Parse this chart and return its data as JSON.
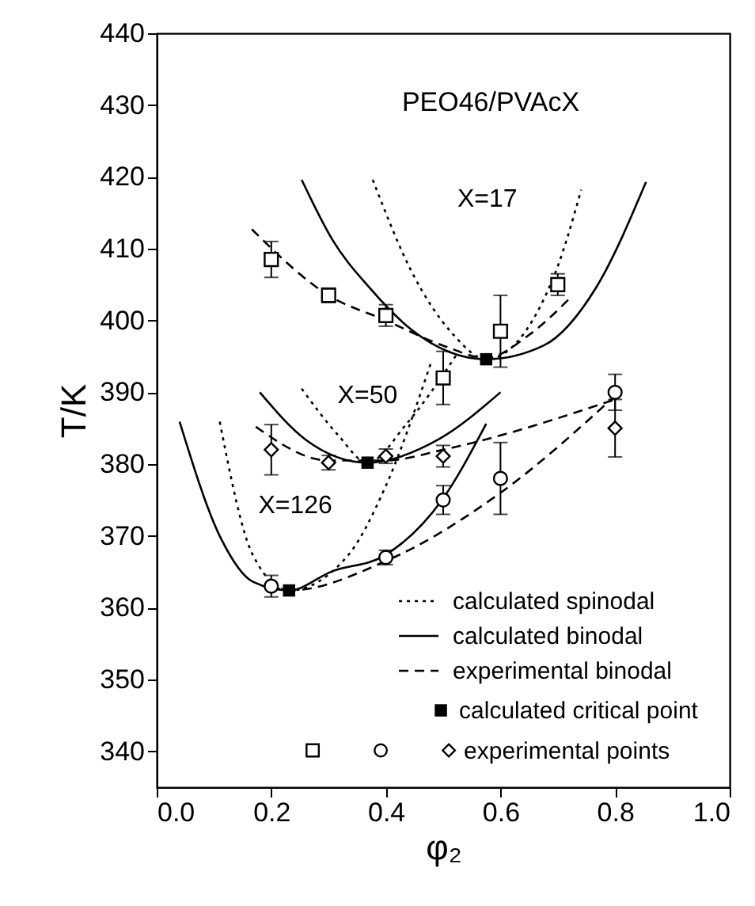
{
  "chart_data": {
    "type": "line",
    "title": "PEO46/PVAcX",
    "xlabel": "φ₂",
    "ylabel": "T/K",
    "xlim": [
      0,
      1
    ],
    "ylim": [
      335,
      440
    ],
    "xticks": [
      {
        "value": 0,
        "label": "0.0"
      },
      0.2,
      0.4,
      0.6,
      0.8,
      {
        "value": 1,
        "label": "1.0"
      }
    ],
    "yticks": [
      340,
      350,
      360,
      370,
      380,
      390,
      400,
      410,
      420,
      430,
      440
    ],
    "grid": false,
    "legend": "bottom right",
    "annotations": [
      "X=17",
      "X=50",
      "X=126"
    ],
    "series": [
      {
        "name": "calculated spinodal",
        "type": "line",
        "line_style": "dotted",
        "color": "#000000",
        "x": [
          0.377,
          0.445,
          0.518,
          0.575,
          0.693,
          0.741
        ],
        "values": [
          419.6,
          406.8,
          398,
          394.6,
          406.1,
          418.2
        ]
      },
      {
        "type": "line",
        "line_style": "dotted",
        "color": "#000000",
        "x": [
          0.253,
          0.316,
          0.368,
          0.436,
          0.528
        ],
        "values": [
          390.5,
          384.1,
          380.2,
          385.6,
          395.8
        ]
      },
      {
        "type": "line",
        "line_style": "dotted",
        "color": "#000000",
        "x": [
          0.11,
          0.168,
          0.231,
          0.334,
          0.399,
          0.479
        ],
        "values": [
          385.9,
          367.3,
          362.4,
          367.3,
          376.8,
          394.2
        ]
      },
      {
        "name": "calculated binodal",
        "type": "line",
        "line_style": "solid",
        "color": "#000000",
        "x": [
          0.253,
          0.307,
          0.371,
          0.445,
          0.575,
          0.675,
          0.767,
          0.854
        ],
        "values": [
          419.6,
          411.2,
          404.6,
          398.7,
          394.6,
          396.5,
          404.6,
          419.3
        ]
      },
      {
        "type": "line",
        "line_style": "solid",
        "color": "#000000",
        "x": [
          0.18,
          0.26,
          0.368,
          0.491,
          0.6
        ],
        "values": [
          390,
          383.4,
          380.2,
          383.4,
          390
        ]
      },
      {
        "type": "line",
        "line_style": "solid",
        "color": "#000000",
        "x": [
          0.04,
          0.113,
          0.168,
          0.231,
          0.307,
          0.396,
          0.498,
          0.575
        ],
        "values": [
          385.9,
          369.5,
          363.6,
          362.4,
          365.1,
          367.2,
          375,
          385.6
        ]
      },
      {
        "name": "experimental binodal",
        "type": "line",
        "line_style": "dashed",
        "color": "#000000",
        "x": [
          0.166,
          0.3,
          0.4,
          0.5,
          0.575,
          0.65,
          0.726
        ],
        "values": [
          412.7,
          403.5,
          400,
          396.5,
          394.8,
          398,
          403.5
        ]
      },
      {
        "type": "line",
        "line_style": "dashed",
        "color": "#000000",
        "x": [
          0.173,
          0.3,
          0.4,
          0.5,
          0.8
        ],
        "values": [
          385.2,
          380.5,
          380.5,
          382,
          389
        ]
      },
      {
        "type": "line",
        "line_style": "dashed",
        "color": "#000000",
        "x": [
          0.2,
          0.231,
          0.4,
          0.6,
          0.8
        ],
        "values": [
          363,
          362.4,
          366.5,
          376,
          389.5
        ]
      },
      {
        "name": "calculated critical point",
        "type": "scatter",
        "marker": "square",
        "color": "#000000",
        "x": [
          0.575,
          0.368,
          0.231
        ],
        "values": [
          394.6,
          380.2,
          362.4
        ]
      },
      {
        "type": "scatter",
        "marker": "square",
        "color": "#000000",
        "x": [
          0.2,
          0.3,
          0.4,
          0.5,
          0.6,
          0.7
        ],
        "values": [
          408.5,
          403.5,
          400.7,
          392,
          398.5,
          405
        ],
        "errors": [
          2.5,
          1,
          1.5,
          3.7,
          5,
          1.5
        ]
      },
      {
        "type": "scatter",
        "marker": "circle",
        "color": "#000000",
        "x": [
          0.2,
          0.4,
          0.5,
          0.6,
          0.8
        ],
        "values": [
          363,
          367,
          375,
          378,
          390
        ],
        "errors": [
          1.5,
          1,
          2,
          5,
          2.5
        ]
      },
      {
        "name": "experimental points",
        "type": "scatter",
        "marker": "diamond",
        "color": "#000000",
        "x": [
          0.2,
          0.3,
          0.4,
          0.5,
          0.8
        ],
        "values": [
          382,
          380.2,
          381.1,
          381.1,
          385
        ],
        "errors": [
          3.5,
          1,
          1,
          1.5,
          4
        ]
      }
    ]
  }
}
